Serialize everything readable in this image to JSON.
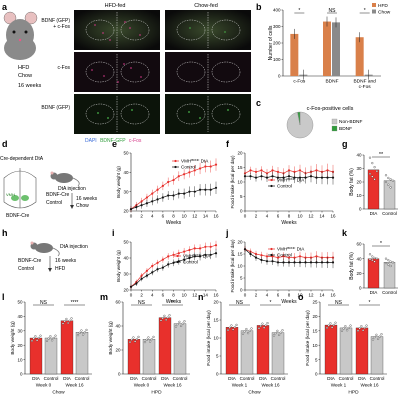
{
  "panels": {
    "a": {
      "letter": "a",
      "col_headers": [
        "HFD-fed",
        "Chow-fed"
      ],
      "row_labels": [
        "BDNF (GFP)\n+ c-Fos",
        "c-Fos",
        "BDNF (GFP)"
      ],
      "mouse_caption": [
        "HFD",
        "Chow",
        "16 weeks"
      ],
      "legend": [
        "DAPI",
        "BDNF-GFP",
        "c-Fos"
      ]
    },
    "b": {
      "letter": "b",
      "significance": [
        "*",
        "NS",
        "*"
      ]
    },
    "c": {
      "letter": "c"
    },
    "d": {
      "letter": "d",
      "texts": [
        "Cre-dependent DtA",
        "VMH",
        "BDNF-Cre",
        "DtA injection",
        "16 weeks",
        "Chow",
        "BDNF-Cre",
        "Control"
      ]
    },
    "e": {
      "letter": "e"
    },
    "f": {
      "letter": "f"
    },
    "g": {
      "letter": "g",
      "significance": "**"
    },
    "h": {
      "letter": "h",
      "texts": [
        "DtA injection",
        "16 weeks",
        "HFD",
        "BDNF-Cre",
        "Control"
      ]
    },
    "i": {
      "letter": "i"
    },
    "j": {
      "letter": "j"
    },
    "k": {
      "letter": "k",
      "significance": "*"
    },
    "l": {
      "letter": "l",
      "significance": [
        "NS",
        "****"
      ],
      "diet": "Chow"
    },
    "m": {
      "letter": "m",
      "significance": [
        "NS",
        "**"
      ],
      "diet": "HPD"
    },
    "n": {
      "letter": "n",
      "significance": [
        "NS",
        "*"
      ],
      "diet": "Chow"
    },
    "o": {
      "letter": "o",
      "significance": [
        "NS",
        "*"
      ],
      "diet": "HPD"
    }
  },
  "colors": {
    "dta": "#e8302c",
    "control": "#111111",
    "hfd_bar": "#d9804a",
    "chow_bar": "#8a8a8a",
    "gray_bar": "#c8c8c8"
  },
  "chart_data": [
    {
      "id": "b",
      "type": "bar",
      "categories": [
        "c-Fos",
        "BDNF",
        "BDNF and\nc-Fos"
      ],
      "series": [
        {
          "name": "HFD",
          "values": [
            255,
            330,
            235
          ]
        },
        {
          "name": "Chow",
          "values": [
            8,
            325,
            8
          ]
        }
      ],
      "ylabel": "Number of cells",
      "ylim": [
        0,
        400
      ],
      "yticks": [
        0,
        100,
        200,
        300,
        400
      ],
      "legend": "top-right"
    },
    {
      "id": "c",
      "type": "pie",
      "title": "c-Fos-positive cells",
      "slices": [
        {
          "name": "Non-BDNF",
          "value": 97
        },
        {
          "name": "BDNF",
          "value": 3
        }
      ],
      "legend": "right"
    },
    {
      "id": "e",
      "type": "line",
      "x": [
        0,
        1,
        2,
        3,
        4,
        5,
        6,
        7,
        8,
        9,
        10,
        11,
        12,
        13,
        14,
        15,
        16
      ],
      "series": [
        {
          "name": "VMH BDNF DtA",
          "values": [
            21,
            23,
            25,
            27,
            29,
            31,
            33,
            35,
            36,
            38,
            39,
            40,
            41,
            42,
            43,
            43,
            44
          ]
        },
        {
          "name": "Control",
          "values": [
            21,
            22,
            23,
            24,
            25,
            26,
            27,
            28,
            28,
            29,
            29,
            30,
            30,
            31,
            31,
            31,
            32
          ]
        }
      ],
      "xlabel": "Weeks",
      "ylabel": "Body weight (g)",
      "xlim": [
        0,
        16
      ],
      "ylim": [
        20,
        50
      ],
      "xticks": [
        0,
        2,
        4,
        6,
        8,
        10,
        12,
        14,
        16
      ],
      "yticks": [
        20,
        30,
        40,
        50
      ],
      "legend": "bottom-right"
    },
    {
      "id": "f",
      "type": "line",
      "x": [
        0,
        1,
        2,
        3,
        4,
        5,
        6,
        7,
        8,
        9,
        10,
        11,
        12,
        13,
        14,
        15,
        16
      ],
      "series": [
        {
          "name": "VMH BDNF DtA",
          "values": [
            13,
            14,
            13.5,
            14,
            13,
            14,
            13.5,
            13,
            14,
            13.5,
            14,
            13,
            13.5,
            14,
            13.5,
            14,
            13.5
          ]
        },
        {
          "name": "Control",
          "values": [
            12,
            12,
            11.5,
            12,
            11.5,
            12,
            11.5,
            11.5,
            12,
            11.5,
            11.5,
            11.5,
            12,
            11.5,
            11.5,
            11.5,
            11.5
          ]
        }
      ],
      "xlabel": "Weeks",
      "ylabel": "Food intake (kcal per day)",
      "xlim": [
        0,
        16
      ],
      "ylim": [
        0,
        20
      ],
      "xticks": [
        0,
        2,
        4,
        6,
        8,
        10,
        12,
        14,
        16
      ],
      "yticks": [
        0,
        5,
        10,
        15,
        20
      ],
      "legend": "center-right"
    },
    {
      "id": "g",
      "type": "bar",
      "categories": [
        "DtA",
        "Control"
      ],
      "values": [
        29,
        21
      ],
      "points": [
        [
          38,
          34,
          31,
          28,
          26,
          24,
          22
        ],
        [
          25,
          23,
          22,
          21,
          20,
          18,
          16
        ]
      ],
      "ylabel": "Body fat (%)",
      "ylim": [
        0,
        40
      ],
      "yticks": [
        0,
        10,
        20,
        30,
        40
      ]
    },
    {
      "id": "i",
      "type": "line",
      "x": [
        0,
        1,
        2,
        3,
        4,
        5,
        6,
        7,
        8,
        9,
        10,
        11,
        12,
        13,
        14,
        15,
        16
      ],
      "series": [
        {
          "name": "VMH BDNF DtA",
          "values": [
            22,
            25,
            29,
            32,
            35,
            37,
            39,
            41,
            42,
            43,
            44,
            45,
            46,
            46,
            47,
            47,
            48
          ]
        },
        {
          "name": "Control",
          "values": [
            22,
            24,
            27,
            29,
            31,
            33,
            34,
            36,
            37,
            38,
            39,
            40,
            41,
            41,
            42,
            42,
            43
          ]
        }
      ],
      "xlabel": "Weeks",
      "ylabel": "Body weight (g)",
      "xlim": [
        0,
        16
      ],
      "ylim": [
        20,
        50
      ],
      "xticks": [
        0,
        2,
        4,
        6,
        8,
        10,
        12,
        14,
        16
      ],
      "yticks": [
        20,
        30,
        40,
        50
      ],
      "legend": "bottom-right"
    },
    {
      "id": "j",
      "type": "line",
      "x": [
        0,
        1,
        2,
        3,
        4,
        5,
        6,
        7,
        8,
        9,
        10,
        11,
        12,
        13,
        14,
        15,
        16
      ],
      "series": [
        {
          "name": "VMH BDNF DtA",
          "values": [
            17,
            16,
            15,
            14.5,
            14,
            14,
            13.5,
            14,
            13.5,
            13.5,
            14,
            13.5,
            13.5,
            14,
            13.5,
            13.5,
            13.5
          ]
        },
        {
          "name": "Control",
          "values": [
            17,
            15,
            13.5,
            12.5,
            12,
            12,
            11.5,
            11.5,
            11.5,
            11.5,
            11.5,
            11.5,
            11.5,
            11.5,
            11.5,
            11.5,
            11.5
          ]
        }
      ],
      "xlabel": "Weeks",
      "ylabel": "Food intake (kcal per day)",
      "xlim": [
        0,
        16
      ],
      "ylim": [
        0,
        20
      ],
      "xticks": [
        0,
        2,
        4,
        6,
        8,
        10,
        12,
        14,
        16
      ],
      "yticks": [
        0,
        5,
        10,
        15,
        20
      ],
      "legend": "top-right"
    },
    {
      "id": "k",
      "type": "bar",
      "categories": [
        "DtA",
        "Control"
      ],
      "values": [
        40,
        35
      ],
      "points": [
        [
          46,
          43,
          41,
          40,
          39,
          38,
          36
        ],
        [
          40,
          38,
          36,
          35,
          34,
          32,
          30
        ]
      ],
      "ylabel": "Body fat (%)",
      "ylim": [
        0,
        60
      ],
      "yticks": [
        0,
        20,
        40,
        60
      ]
    },
    {
      "id": "l",
      "type": "bar",
      "groups": [
        "Week 0",
        "Week 16"
      ],
      "categories": [
        "DtA",
        "Control",
        "DtA",
        "Control"
      ],
      "values": [
        25,
        25,
        37,
        29
      ],
      "ylabel": "Body weight (g)",
      "ylim": [
        0,
        50
      ],
      "yticks": [
        0,
        10,
        20,
        30,
        40,
        50
      ]
    },
    {
      "id": "m",
      "type": "bar",
      "groups": [
        "Week 0",
        "Week 16"
      ],
      "categories": [
        "DtA",
        "Control",
        "DtA",
        "Control"
      ],
      "values": [
        29,
        29,
        47,
        42
      ],
      "ylabel": "Body weight (g)",
      "ylim": [
        0,
        60
      ],
      "yticks": [
        0,
        20,
        40,
        60
      ]
    },
    {
      "id": "n",
      "type": "bar",
      "groups": [
        "Week 1",
        "Week 16"
      ],
      "categories": [
        "DtA",
        "Control",
        "DtA",
        "Control"
      ],
      "values": [
        13,
        12,
        13.5,
        11.5
      ],
      "ylabel": "Food intake (kcal per day)",
      "ylim": [
        0,
        20
      ],
      "yticks": [
        0,
        5,
        10,
        15,
        20
      ]
    },
    {
      "id": "o",
      "type": "bar",
      "groups": [
        "Week 1",
        "Week 16"
      ],
      "categories": [
        "DtA",
        "Control",
        "DtA",
        "Control"
      ],
      "values": [
        17,
        16,
        16,
        13
      ],
      "ylabel": "Food intake (kcal per day)",
      "ylim": [
        0,
        25
      ],
      "yticks": [
        0,
        5,
        10,
        15,
        20,
        25
      ]
    }
  ]
}
